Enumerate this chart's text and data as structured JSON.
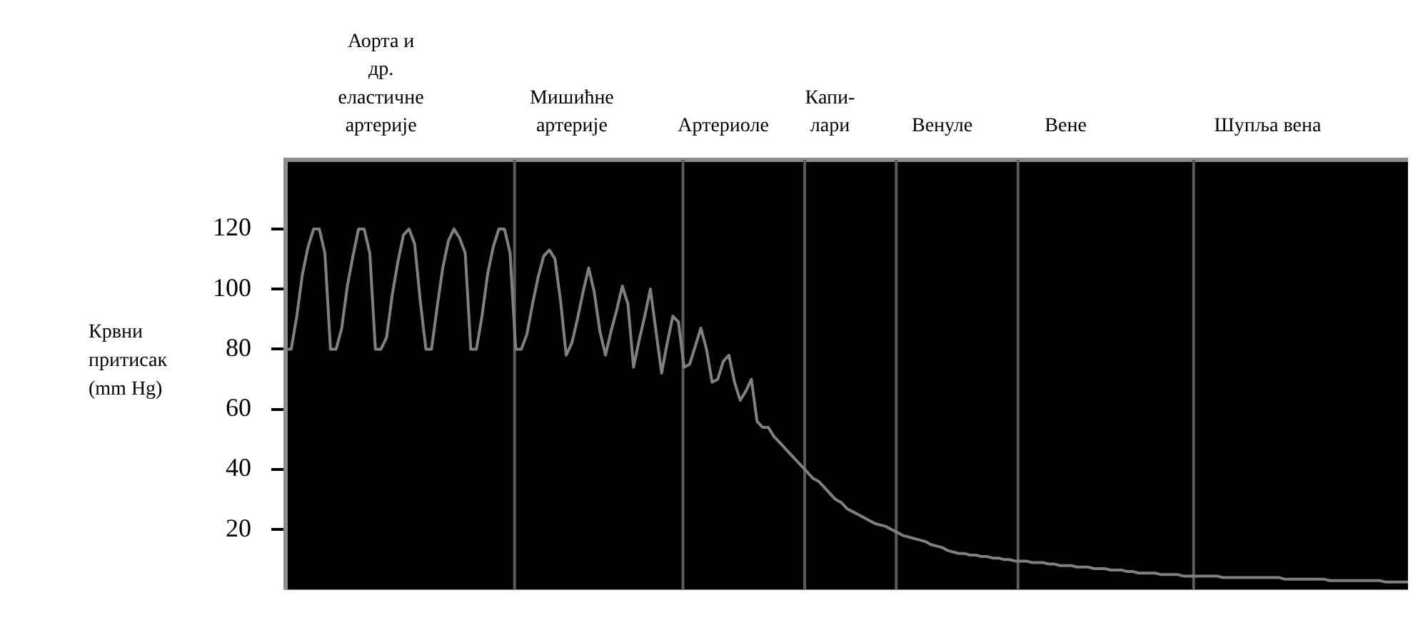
{
  "chart_data": {
    "type": "line",
    "ylabel": "Крвни\nпритисак\n(mm Hg)",
    "categories": [
      null,
      null,
      null,
      null,
      null,
      null,
      null,
      null,
      null,
      null,
      null,
      null,
      null,
      null,
      null,
      null,
      null,
      "Аорта и\nдр.\nеластичне\nартерије",
      null,
      null,
      null,
      null,
      null,
      null,
      null,
      null,
      null,
      null,
      null,
      null,
      null,
      null,
      null,
      null,
      null,
      null,
      null,
      null,
      null,
      null,
      null,
      null,
      null,
      null,
      null,
      null,
      null,
      null,
      null,
      null,
      null,
      "Мишићне\nартерије",
      null,
      null,
      null,
      null,
      null,
      null,
      null,
      null,
      null,
      null,
      null,
      null,
      null,
      null,
      null,
      null,
      null,
      null,
      null,
      null,
      null,
      null,
      null,
      null,
      null,
      null,
      "Артериоле",
      null,
      null,
      null,
      null,
      null,
      null,
      null,
      null,
      null,
      null,
      null,
      null,
      null,
      null,
      null,
      null,
      null,
      null,
      "Капи-\nлари",
      null,
      null,
      null,
      null,
      null,
      null,
      null,
      null,
      null,
      null,
      null,
      null,
      null,
      null,
      null,
      null,
      null,
      null,
      null,
      "Венуле",
      null,
      null,
      null,
      null,
      null,
      null,
      null,
      null,
      null,
      null,
      null,
      null,
      null,
      null,
      null,
      null,
      null,
      null,
      null,
      null,
      null,
      "Вене",
      null,
      null,
      null,
      null,
      null,
      null,
      null,
      null,
      null,
      null,
      null,
      null,
      null,
      null,
      null,
      null,
      null,
      null,
      null,
      null,
      null,
      null,
      null,
      null,
      null,
      null,
      null,
      null,
      null,
      null,
      null,
      null,
      null,
      null,
      null,
      "Шупља вена",
      null,
      null,
      null,
      null,
      null,
      null,
      null,
      null,
      null,
      null,
      null,
      null,
      null,
      null,
      null,
      null,
      null,
      null,
      null,
      null,
      null,
      null,
      null,
      null,
      null
    ],
    "ylim": [
      0,
      143
    ],
    "yticks": [
      20,
      40,
      60,
      80,
      100,
      120
    ],
    "grid": false,
    "legend": false,
    "marker": "none",
    "line_style": "solid",
    "series": [
      {
        "color": "#808080",
        "values": [
          80,
          80,
          91,
          105,
          114,
          120,
          120,
          112,
          80,
          80,
          87,
          101,
          111,
          120,
          120,
          112,
          80,
          80,
          84,
          98,
          109,
          118,
          120,
          115,
          96,
          80,
          80,
          94,
          107,
          116,
          120,
          117,
          112,
          80,
          80,
          91,
          105,
          114,
          120,
          120,
          112,
          80,
          80,
          85,
          95,
          104,
          111,
          113,
          110,
          96,
          78,
          82,
          90,
          99,
          107,
          99,
          86,
          78,
          86,
          93,
          101,
          95,
          74,
          83,
          91,
          100,
          86,
          72,
          82,
          91,
          89,
          74,
          75,
          81,
          87,
          80,
          69,
          70,
          76,
          78,
          69,
          63,
          66,
          70,
          56,
          54,
          54,
          51,
          49,
          47,
          45,
          43,
          41,
          39,
          37,
          36,
          34,
          32,
          30,
          29,
          27,
          26,
          25,
          24,
          23,
          22,
          21.5,
          21,
          20,
          19,
          18,
          17.5,
          17,
          16.5,
          16,
          15,
          14.5,
          14,
          13,
          12.5,
          12,
          12,
          11.5,
          11.5,
          11,
          11,
          10.5,
          10.5,
          10,
          10,
          9.5,
          9.5,
          9.5,
          9,
          9,
          9,
          8.5,
          8.5,
          8,
          8,
          8,
          7.5,
          7.5,
          7.5,
          7,
          7,
          7,
          6.5,
          6.5,
          6.5,
          6,
          6,
          5.5,
          5.5,
          5.5,
          5.5,
          5,
          5,
          5,
          5,
          4.5,
          4.5,
          4.5,
          4.5,
          4.5,
          4.5,
          4.5,
          4,
          4,
          4,
          4,
          4,
          4,
          4,
          4,
          4,
          4,
          4,
          3.5,
          3.5,
          3.5,
          3.5,
          3.5,
          3.5,
          3.5,
          3.5,
          3,
          3,
          3,
          3,
          3,
          3,
          3,
          3,
          3,
          3,
          2.5,
          2.5,
          2.5,
          2.5,
          2.5
        ]
      }
    ]
  }
}
